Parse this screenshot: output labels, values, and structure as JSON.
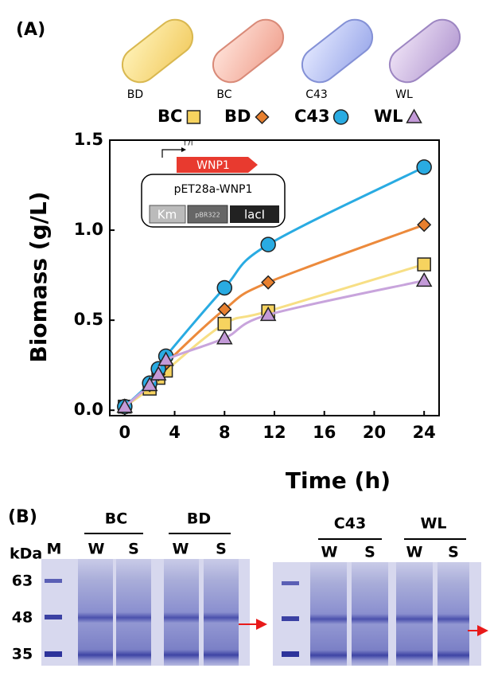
{
  "panel_a_label": "(A)",
  "strains": [
    "BD",
    "BC",
    "C43",
    "WL"
  ],
  "chart_data": {
    "type": "line",
    "xlabel": "Time (h)",
    "ylabel": "Biomass (g/L)",
    "x": [
      0,
      2,
      2.7,
      3.3,
      8,
      11.5,
      24
    ],
    "series": [
      {
        "name": "BC",
        "color": "#f6d35f",
        "line_color": "#f7df85",
        "marker": "square",
        "values": [
          0.02,
          0.12,
          0.18,
          0.22,
          0.48,
          0.55,
          0.81
        ]
      },
      {
        "name": "BD",
        "color": "#e8802f",
        "line_color": "#ec8a3c",
        "marker": "diamond",
        "values": [
          0.02,
          0.14,
          0.2,
          0.26,
          0.56,
          0.71,
          1.03
        ]
      },
      {
        "name": "C43",
        "color": "#29abe2",
        "line_color": "#29abe2",
        "marker": "circle",
        "values": [
          0.02,
          0.15,
          0.23,
          0.3,
          0.68,
          0.92,
          1.35
        ]
      },
      {
        "name": "WL",
        "color": "#c39ad8",
        "line_color": "#c8a4dc",
        "marker": "triangle",
        "values": [
          0.02,
          0.14,
          0.2,
          0.28,
          0.4,
          0.53,
          0.72
        ]
      }
    ],
    "xlim": [
      -1.2,
      25.2
    ],
    "xticks": [
      0,
      4,
      8,
      12,
      16,
      20,
      24
    ],
    "ylim": [
      -0.03,
      1.5
    ],
    "yticks": [
      {
        "value": 0,
        "label": "0.0"
      },
      {
        "value": 0.5,
        "label": "0.5"
      },
      {
        "value": 1,
        "label": "1.0"
      },
      {
        "value": 1.5,
        "label": "1.5"
      }
    ],
    "inset": {
      "promoter": "T7I",
      "gene": "WNP1",
      "plasmid": "pET28a-WNP1",
      "parts": [
        "Km",
        "pBR322",
        "lacI"
      ]
    }
  },
  "gel": {
    "panel_label": "(B)",
    "unit": "kDa",
    "marker_lane": "M",
    "sizes": [
      "63",
      "48",
      "35"
    ],
    "groups": [
      "BC",
      "BD",
      "C43",
      "WL"
    ],
    "lanes": [
      "W",
      "S",
      "W",
      "S",
      "W",
      "S",
      "W",
      "S"
    ]
  }
}
